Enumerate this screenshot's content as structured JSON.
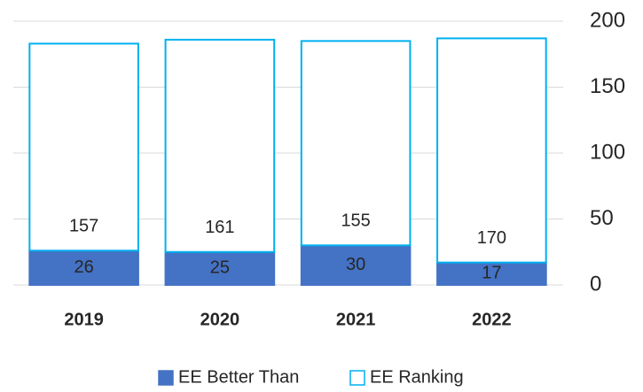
{
  "chart_data": {
    "type": "stacked_bar",
    "categories": [
      "2019",
      "2020",
      "2021",
      "2022"
    ],
    "series": [
      {
        "name": "EE Better Than",
        "color": "#4472c4",
        "values": [
          26,
          25,
          30,
          17
        ]
      },
      {
        "name": "EE Ranking",
        "color": "#00b0f0",
        "fill": "none",
        "values": [
          157,
          161,
          155,
          170
        ]
      }
    ],
    "ylim": [
      0,
      200
    ],
    "yticks": [
      0,
      50,
      100,
      150,
      200
    ],
    "grid": true,
    "y_axis_side": "right",
    "legend": "bottom"
  }
}
